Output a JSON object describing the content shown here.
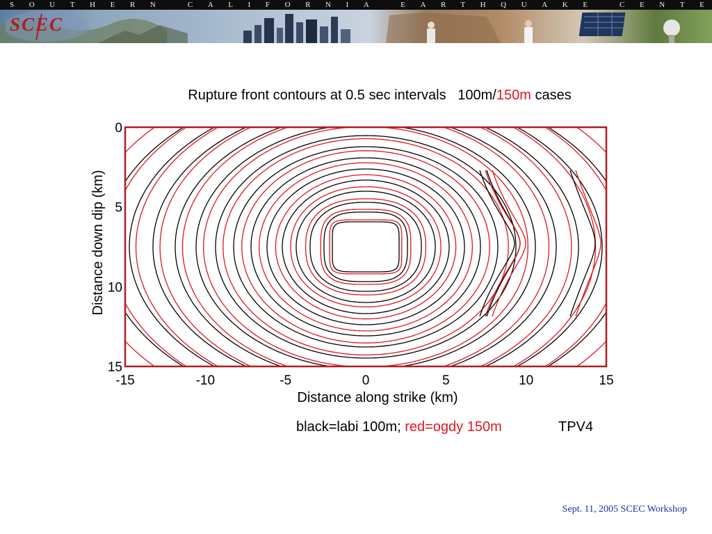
{
  "banner": {
    "title": "SOUTHERN CALIFORNIA EARTHQUAKE CENTER",
    "logo_text": "SCEC"
  },
  "chart_data": {
    "type": "contour",
    "title": {
      "prefix": "Rupture front contours at 0.5 sec intervals   100m/",
      "highlight": "150m",
      "suffix": " cases"
    },
    "xlabel": "Distance along strike (km)",
    "ylabel": "Distance down dip (km)",
    "xlim": [
      -15,
      15
    ],
    "ylim": [
      0,
      15
    ],
    "y_inverted": true,
    "xticks": [
      -15,
      -10,
      -5,
      0,
      5,
      10,
      15
    ],
    "yticks": [
      0,
      5,
      10,
      15
    ],
    "nucleation_center": [
      0,
      7.5
    ],
    "contour_interval_sec": 0.5,
    "series": [
      {
        "name": "labi 100m",
        "color": "#000000"
      },
      {
        "name": "ogdy 150m",
        "color": "#e0161c"
      }
    ],
    "legend": {
      "black_text": "black=labi 100m; ",
      "red_text": "red=ogdy 150m",
      "extra": "TPV4"
    }
  },
  "footer": {
    "text": "Sept. 11, 2005 SCEC Workshop"
  },
  "colors": {
    "frame": "#b01d21",
    "red": "#e0161c",
    "black": "#000000",
    "footer": "#1f2fa8"
  }
}
